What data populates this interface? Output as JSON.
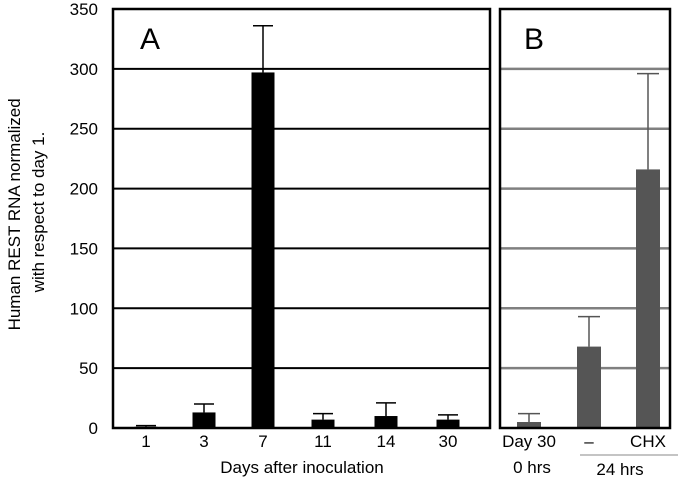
{
  "colors": {
    "panel_a_bar": "#000000",
    "panel_b_bar": "#555555",
    "gridline_a": "#000000",
    "gridline_b": "#808080",
    "frame": "#000000"
  },
  "ylabel_lines": [
    "Human REST RNA normalized",
    "with respect to day 1."
  ],
  "chart_data": [
    {
      "type": "bar",
      "panel": "A",
      "categories": [
        "1",
        "3",
        "7",
        "11",
        "14",
        "30"
      ],
      "values": [
        1,
        13,
        297,
        7,
        10,
        7
      ],
      "errors": [
        1,
        7,
        39,
        5,
        11,
        4
      ],
      "xlabel": "Days after inoculation",
      "ylabel": "Human REST RNA normalized with respect to day 1.",
      "ylim": [
        0,
        350
      ],
      "yticks": [
        "0",
        "50",
        "100",
        "150",
        "200",
        "250",
        "300",
        "350"
      ],
      "grid": true
    },
    {
      "type": "bar",
      "panel": "B",
      "categories": [
        "Day 30",
        "–",
        "CHX"
      ],
      "values": [
        5,
        68,
        216
      ],
      "errors": [
        7,
        25,
        80
      ],
      "category_sublabels": [
        "0 hrs",
        "24 hrs"
      ],
      "ylim": [
        0,
        350
      ],
      "grid": true
    }
  ]
}
